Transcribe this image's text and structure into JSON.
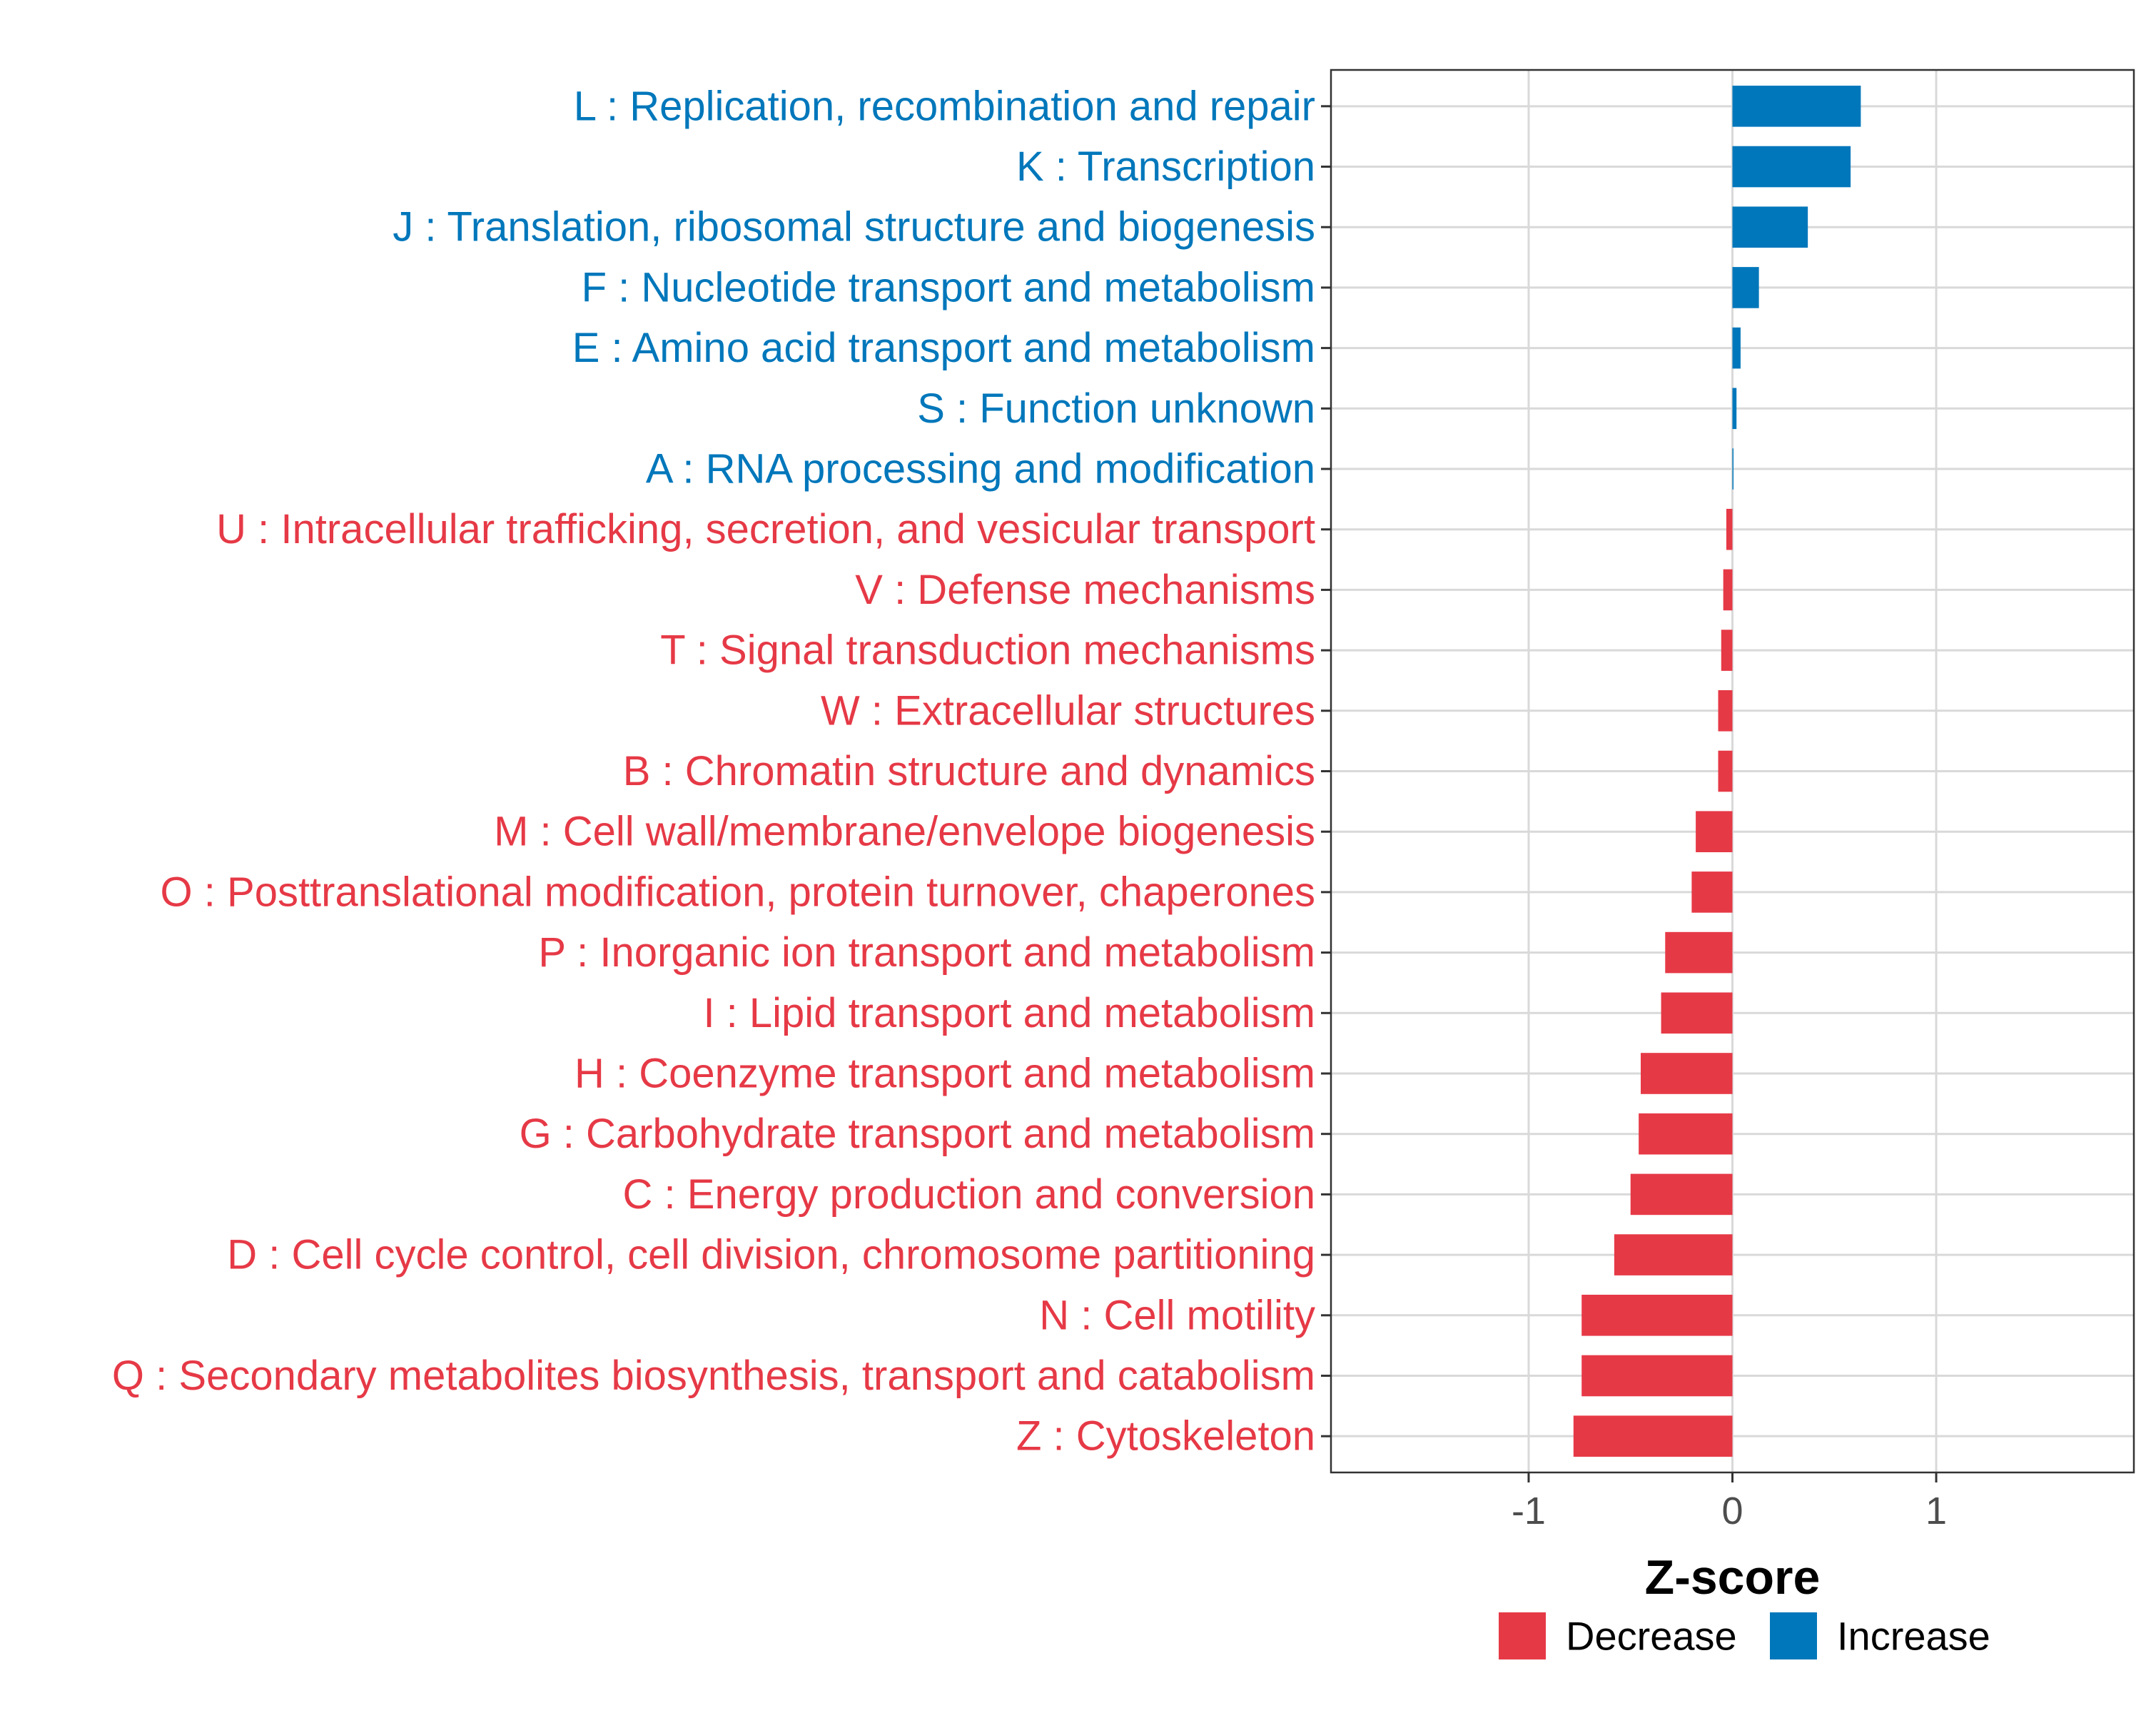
{
  "chart_data": {
    "type": "bar",
    "orientation": "horizontal",
    "title": "",
    "xlabel": "Z-score",
    "ylabel": "",
    "xlim": [
      -1.97,
      1.97
    ],
    "xticks": [
      -1,
      0,
      1
    ],
    "xtick_labels": [
      "-1",
      "0",
      "1"
    ],
    "grid": true,
    "colors": {
      "Increase": "#0077bb",
      "Decrease": "#e63946"
    },
    "categories": [
      "L : Replication, recombination and repair",
      "K : Transcription",
      "J : Translation, ribosomal structure and biogenesis",
      "F : Nucleotide transport and metabolism",
      "E : Amino acid transport and metabolism",
      "S : Function unknown",
      "A : RNA processing and modification",
      "U : Intracellular trafficking, secretion, and vesicular transport",
      "V : Defense mechanisms",
      "T : Signal transduction mechanisms",
      "W : Extracellular structures",
      "B : Chromatin structure and dynamics",
      "M : Cell wall/membrane/envelope biogenesis",
      "O : Posttranslational modification, protein turnover, chaperones",
      "P : Inorganic ion transport and metabolism",
      "I : Lipid transport and metabolism",
      "H : Coenzyme transport and metabolism",
      "G : Carbohydrate transport and metabolism",
      "C : Energy production and conversion",
      "D : Cell cycle control, cell division, chromosome partitioning",
      "N : Cell motility",
      "Q : Secondary metabolites biosynthesis, transport and catabolism",
      "Z : Cytoskeleton"
    ],
    "values": [
      0.63,
      0.58,
      0.37,
      0.13,
      0.04,
      0.02,
      0.005,
      -0.03,
      -0.045,
      -0.055,
      -0.07,
      -0.07,
      -0.18,
      -0.2,
      -0.33,
      -0.35,
      -0.45,
      -0.46,
      -0.5,
      -0.58,
      -0.74,
      -0.74,
      -0.78
    ],
    "groups": [
      "Increase",
      "Increase",
      "Increase",
      "Increase",
      "Increase",
      "Increase",
      "Increase",
      "Decrease",
      "Decrease",
      "Decrease",
      "Decrease",
      "Decrease",
      "Decrease",
      "Decrease",
      "Decrease",
      "Decrease",
      "Decrease",
      "Decrease",
      "Decrease",
      "Decrease",
      "Decrease",
      "Decrease",
      "Decrease"
    ],
    "legend": {
      "position": "bottom",
      "entries": [
        {
          "label": "Decrease",
          "color": "#e63946"
        },
        {
          "label": "Increase",
          "color": "#0077bb"
        }
      ]
    }
  }
}
